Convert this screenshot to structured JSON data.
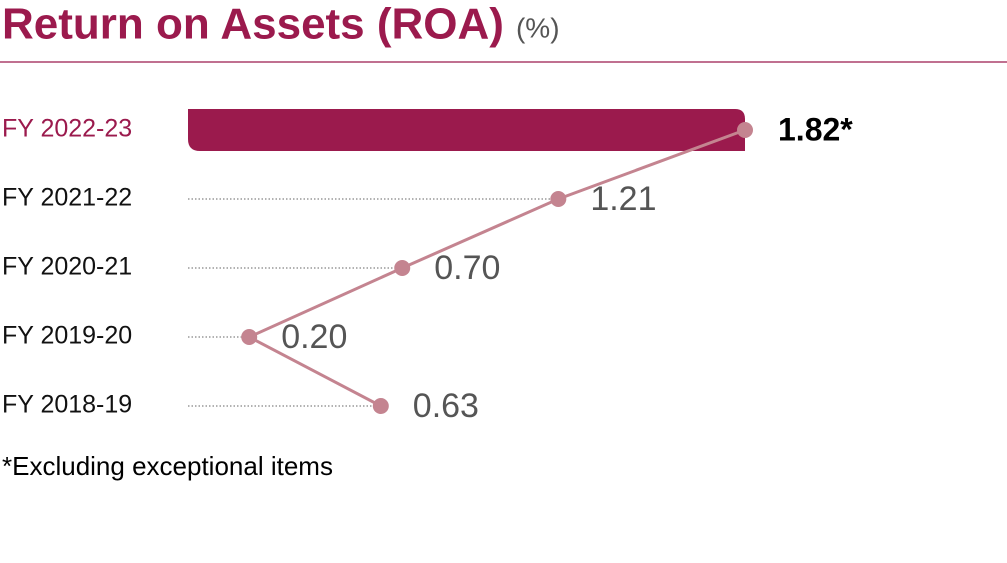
{
  "chart_data": {
    "type": "bar",
    "title": "Return on Assets (ROA)",
    "unit": "(%)",
    "categories": [
      "FY 2022-23",
      "FY 2021-22",
      "FY 2020-21",
      "FY 2019-20",
      "FY 2018-19"
    ],
    "values": [
      1.82,
      1.21,
      0.7,
      0.2,
      0.63
    ],
    "value_labels": [
      "1.82*",
      "1.21",
      "0.70",
      "0.20",
      "0.63"
    ],
    "color": "#9b1a4d",
    "line_color": "#c48490",
    "footnote": "*Excluding exceptional items"
  }
}
